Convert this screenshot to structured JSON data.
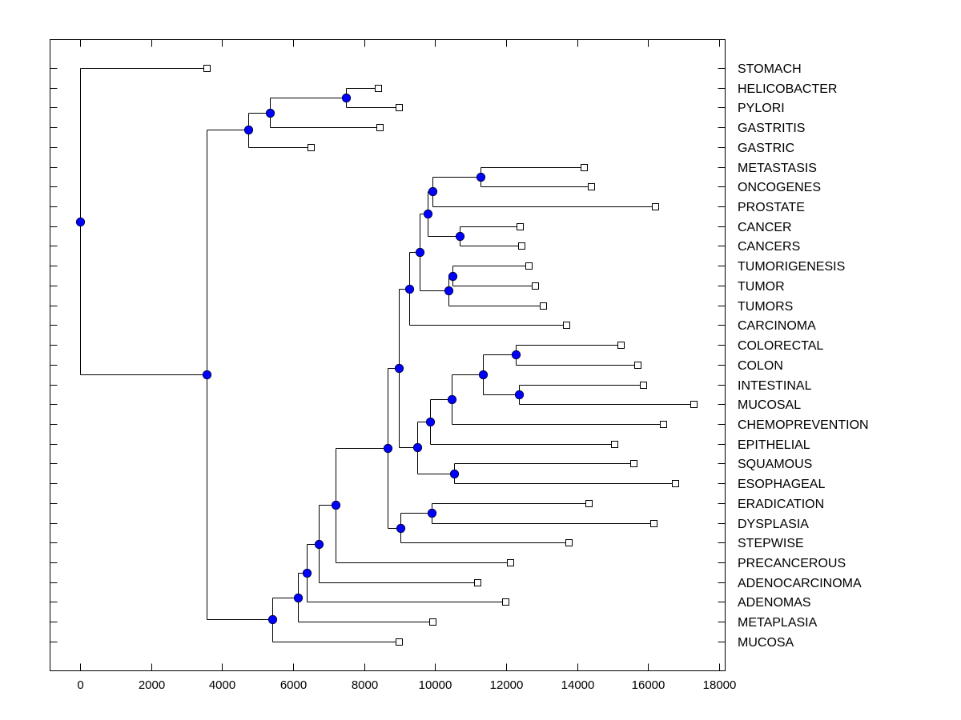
{
  "chart_data": {
    "type": "dendrogram",
    "title": "",
    "xlabel": "",
    "ylabel": "",
    "xlim": [
      -850,
      18250
    ],
    "xticks": [
      0,
      2000,
      4000,
      6000,
      8000,
      10000,
      12000,
      14000,
      16000,
      18000
    ],
    "xtick_labels": [
      "0",
      "2000",
      "4000",
      "6000",
      "8000",
      "10000",
      "12000",
      "14000",
      "16000",
      "18000"
    ],
    "grid": false,
    "legend": "none",
    "colors": {
      "internal_node": "#0000ff",
      "leaf_marker_fill": "#ffffff",
      "line": "#000000"
    },
    "leaves": [
      {
        "id": "STOMACH",
        "label": "STOMACH",
        "x": 3560
      },
      {
        "id": "HELICOBACTER",
        "label": "HELICOBACTER",
        "x": 8390
      },
      {
        "id": "PYLORI",
        "label": "PYLORI",
        "x": 8980
      },
      {
        "id": "GASTRITIS",
        "label": "GASTRITIS",
        "x": 8440
      },
      {
        "id": "GASTRIC",
        "label": "GASTRIC",
        "x": 6500
      },
      {
        "id": "METASTASIS",
        "label": "METASTASIS",
        "x": 14190
      },
      {
        "id": "ONCOGENES",
        "label": "ONCOGENES",
        "x": 14390
      },
      {
        "id": "PROSTATE",
        "label": "PROSTATE",
        "x": 16200
      },
      {
        "id": "CANCER",
        "label": "CANCER",
        "x": 12380
      },
      {
        "id": "CANCERS",
        "label": "CANCERS",
        "x": 12430
      },
      {
        "id": "TUMORIGENESIS",
        "label": "TUMORIGENESIS",
        "x": 12630
      },
      {
        "id": "TUMOR",
        "label": "TUMOR",
        "x": 12810
      },
      {
        "id": "TUMORS",
        "label": "TUMORS",
        "x": 13040
      },
      {
        "id": "CARCINOMA",
        "label": "CARCINOMA",
        "x": 13690
      },
      {
        "id": "COLORECTAL",
        "label": "COLORECTAL",
        "x": 15230
      },
      {
        "id": "COLON",
        "label": "COLON",
        "x": 15700
      },
      {
        "id": "INTESTINAL",
        "label": "INTESTINAL",
        "x": 15860
      },
      {
        "id": "MUCOSAL",
        "label": "MUCOSAL",
        "x": 17280
      },
      {
        "id": "CHEMOPREVENTION",
        "label": "CHEMOPREVENTION",
        "x": 16420
      },
      {
        "id": "EPITHELIAL",
        "label": "EPITHELIAL",
        "x": 15050
      },
      {
        "id": "SQUAMOUS",
        "label": "SQUAMOUS",
        "x": 15590
      },
      {
        "id": "ESOPHAGEAL",
        "label": "ESOPHAGEAL",
        "x": 16760
      },
      {
        "id": "ERADICATION",
        "label": "ERADICATION",
        "x": 14330
      },
      {
        "id": "DYSPLASIA",
        "label": "DYSPLASIA",
        "x": 16150
      },
      {
        "id": "STEPWISE",
        "label": "STEPWISE",
        "x": 13760
      },
      {
        "id": "PRECANCEROUS",
        "label": "PRECANCEROUS",
        "x": 12110
      },
      {
        "id": "ADENOCARCINOMA",
        "label": "ADENOCARCINOMA",
        "x": 11190
      },
      {
        "id": "ADENOMAS",
        "label": "ADENOMAS",
        "x": 11980
      },
      {
        "id": "METAPLASIA",
        "label": "METAPLASIA",
        "x": 9930
      },
      {
        "id": "MUCOSA",
        "label": "MUCOSA",
        "x": 8980
      }
    ],
    "nodes": [
      {
        "id": "n_helico_pylori",
        "x": 7490,
        "children": [
          "HELICOBACTER",
          "PYLORI"
        ]
      },
      {
        "id": "n_gastritis",
        "x": 5350,
        "children": [
          "n_helico_pylori",
          "GASTRITIS"
        ]
      },
      {
        "id": "n_gastric",
        "x": 4740,
        "children": [
          "n_gastritis",
          "GASTRIC"
        ]
      },
      {
        "id": "n_meta_onco",
        "x": 11280,
        "children": [
          "METASTASIS",
          "ONCOGENES"
        ]
      },
      {
        "id": "n_prostate",
        "x": 9930,
        "children": [
          "n_meta_onco",
          "PROSTATE"
        ]
      },
      {
        "id": "n_cancer_cancers",
        "x": 10690,
        "children": [
          "CANCER",
          "CANCERS"
        ]
      },
      {
        "id": "n_upper_a",
        "x": 9790,
        "children": [
          "n_prostate",
          "n_cancer_cancers"
        ]
      },
      {
        "id": "n_tumorig_tumor",
        "x": 10490,
        "children": [
          "TUMORIGENESIS",
          "TUMOR"
        ]
      },
      {
        "id": "n_tumors",
        "x": 10380,
        "children": [
          "n_tumorig_tumor",
          "TUMORS"
        ]
      },
      {
        "id": "n_upper_b",
        "x": 9560,
        "children": [
          "n_upper_a",
          "n_tumors"
        ]
      },
      {
        "id": "n_carcinoma",
        "x": 9270,
        "children": [
          "n_upper_b",
          "CARCINOMA"
        ]
      },
      {
        "id": "n_colorectal_colon",
        "x": 12270,
        "children": [
          "COLORECTAL",
          "COLON"
        ]
      },
      {
        "id": "n_intestinal_mucosal",
        "x": 12360,
        "children": [
          "INTESTINAL",
          "MUCOSAL"
        ]
      },
      {
        "id": "n_colon_group",
        "x": 11350,
        "children": [
          "n_colorectal_colon",
          "n_intestinal_mucosal"
        ]
      },
      {
        "id": "n_chemo",
        "x": 10470,
        "children": [
          "n_colon_group",
          "CHEMOPREVENTION"
        ]
      },
      {
        "id": "n_epithelial",
        "x": 9860,
        "children": [
          "n_chemo",
          "EPITHELIAL"
        ]
      },
      {
        "id": "n_squamous_esoph",
        "x": 10530,
        "children": [
          "SQUAMOUS",
          "ESOPHAGEAL"
        ]
      },
      {
        "id": "n_mid",
        "x": 9500,
        "children": [
          "n_epithelial",
          "n_squamous_esoph"
        ]
      },
      {
        "id": "n_cancer_block",
        "x": 8980,
        "children": [
          "n_carcinoma",
          "n_mid"
        ]
      },
      {
        "id": "n_erad_dysp",
        "x": 9900,
        "children": [
          "ERADICATION",
          "DYSPLASIA"
        ]
      },
      {
        "id": "n_stepwise",
        "x": 9020,
        "children": [
          "n_erad_dysp",
          "STEPWISE"
        ]
      },
      {
        "id": "n_big",
        "x": 8660,
        "children": [
          "n_cancer_block",
          "n_stepwise"
        ]
      },
      {
        "id": "n_precancerous",
        "x": 7200,
        "children": [
          "n_big",
          "PRECANCEROUS"
        ]
      },
      {
        "id": "n_adenocarcinoma",
        "x": 6720,
        "children": [
          "n_precancerous",
          "ADENOCARCINOMA"
        ]
      },
      {
        "id": "n_adenomas",
        "x": 6380,
        "children": [
          "n_adenocarcinoma",
          "ADENOMAS"
        ]
      },
      {
        "id": "n_metaplasia",
        "x": 6140,
        "children": [
          "n_adenomas",
          "METAPLASIA"
        ]
      },
      {
        "id": "n_mucosa",
        "x": 5410,
        "children": [
          "n_metaplasia",
          "MUCOSA"
        ]
      },
      {
        "id": "n_rest",
        "x": 3560,
        "children": [
          "n_gastric",
          "n_mucosa"
        ]
      },
      {
        "id": "root",
        "x": 0,
        "children": [
          "STOMACH",
          "n_rest"
        ]
      }
    ]
  }
}
